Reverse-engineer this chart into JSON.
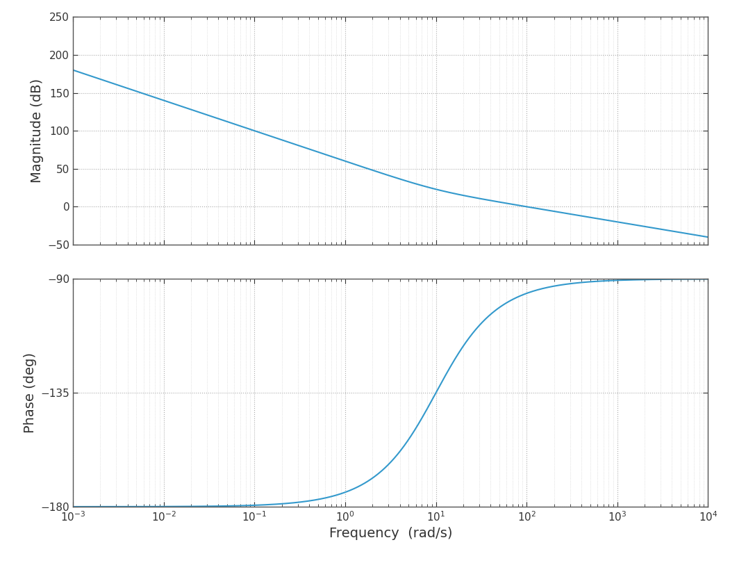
{
  "freq_min": 0.001,
  "freq_max": 10000.0,
  "num_points": 3000,
  "K": 100,
  "zero": 10,
  "mag_ylim": [
    -50,
    250
  ],
  "mag_yticks": [
    -50,
    0,
    50,
    100,
    150,
    200,
    250
  ],
  "phase_ylim": [
    -180,
    -90
  ],
  "phase_yticks": [
    -180,
    -135,
    -90
  ],
  "xlabel": "Frequency  (rad/s)",
  "ylabel_mag": "Magnitude (dB)",
  "ylabel_phase": "Phase (deg)",
  "line_color": "#3399cc",
  "line_width": 1.5,
  "major_grid_color": "#aaaaaa",
  "minor_grid_color": "#cccccc",
  "bg_color": "#ffffff",
  "fig_bg": "#ffffff",
  "tick_color": "#333333",
  "label_color": "#333333",
  "spine_color": "#555555",
  "font_size_label": 14,
  "font_size_tick": 11,
  "fig_width": 10.51,
  "fig_height": 8.1,
  "dpi": 100
}
